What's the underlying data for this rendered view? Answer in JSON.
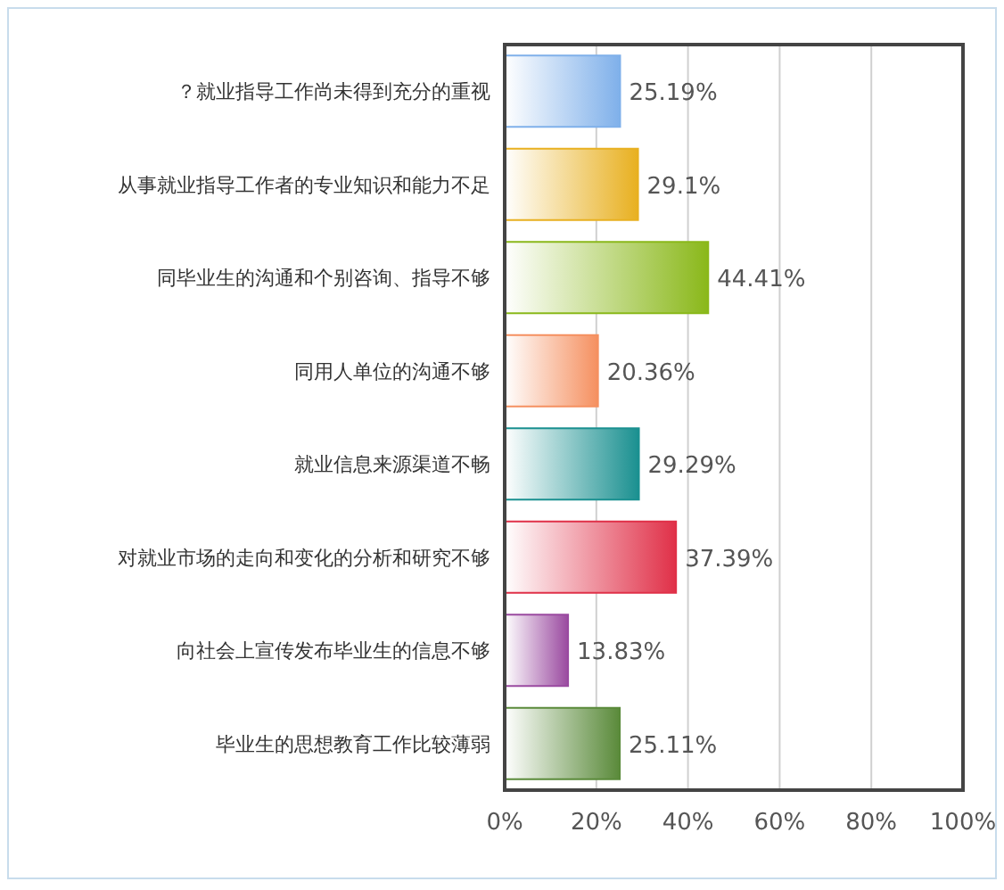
{
  "chart_data": {
    "type": "bar",
    "orientation": "horizontal",
    "categories": [
      "？就业指导工作尚未得到充分的重视",
      "从事就业指导工作者的专业知识和能力不足",
      "同毕业生的沟通和个别咨询、指导不够",
      "同用人单位的沟通不够",
      "就业信息来源渠道不畅",
      "对就业市场的走向和变化的分析和研究不够",
      "向社会上宣传发布毕业生的信息不够",
      "毕业生的思想教育工作比较薄弱"
    ],
    "values": [
      25.19,
      29.1,
      44.41,
      20.36,
      29.29,
      37.39,
      13.83,
      25.11
    ],
    "value_labels": [
      "25.19%",
      "29.1%",
      "44.41%",
      "20.36%",
      "29.29%",
      "37.39%",
      "13.83%",
      "25.11%"
    ],
    "colors": [
      "#7fb0ea",
      "#e8b020",
      "#8ab81a",
      "#f59060",
      "#1a9090",
      "#e03048",
      "#9a4aa0",
      "#5a8a3a"
    ],
    "xlim": [
      0,
      100
    ],
    "xticks": [
      {
        "value": 0,
        "label": "0%"
      },
      {
        "value": 20,
        "label": "20%"
      },
      {
        "value": 40,
        "label": "40%"
      },
      {
        "value": 60,
        "label": "60%"
      },
      {
        "value": 80,
        "label": "80%"
      },
      {
        "value": 100,
        "label": "100%"
      }
    ],
    "grid": "x"
  }
}
